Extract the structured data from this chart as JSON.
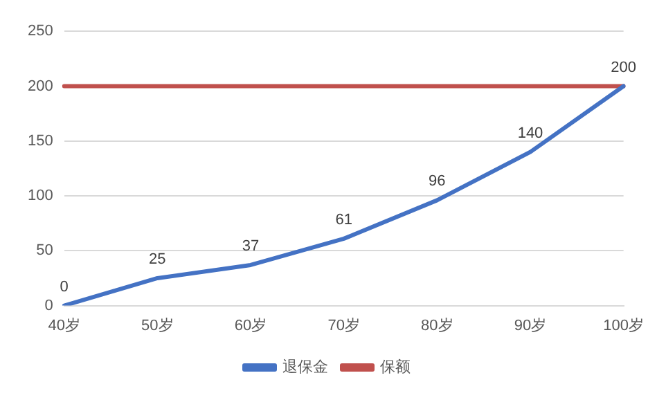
{
  "chart_data": {
    "type": "line",
    "categories": [
      "40岁",
      "50岁",
      "60岁",
      "70岁",
      "80岁",
      "90岁",
      "100岁"
    ],
    "series": [
      {
        "name": "退保金",
        "color": "#4472c4",
        "values": [
          0,
          25,
          37,
          61,
          96,
          140,
          200
        ],
        "value_labels": [
          "0",
          "25",
          "37",
          "61",
          "96",
          "140",
          "200"
        ]
      },
      {
        "name": "保额",
        "color": "#c0504d",
        "values": [
          200,
          200,
          200,
          200,
          200,
          200,
          200
        ]
      }
    ],
    "ylim": [
      0,
      250
    ],
    "yticks": [
      0,
      50,
      100,
      150,
      200,
      250
    ],
    "grid": "y",
    "legend": "bottom",
    "marker": "none",
    "line_style": "solid"
  }
}
